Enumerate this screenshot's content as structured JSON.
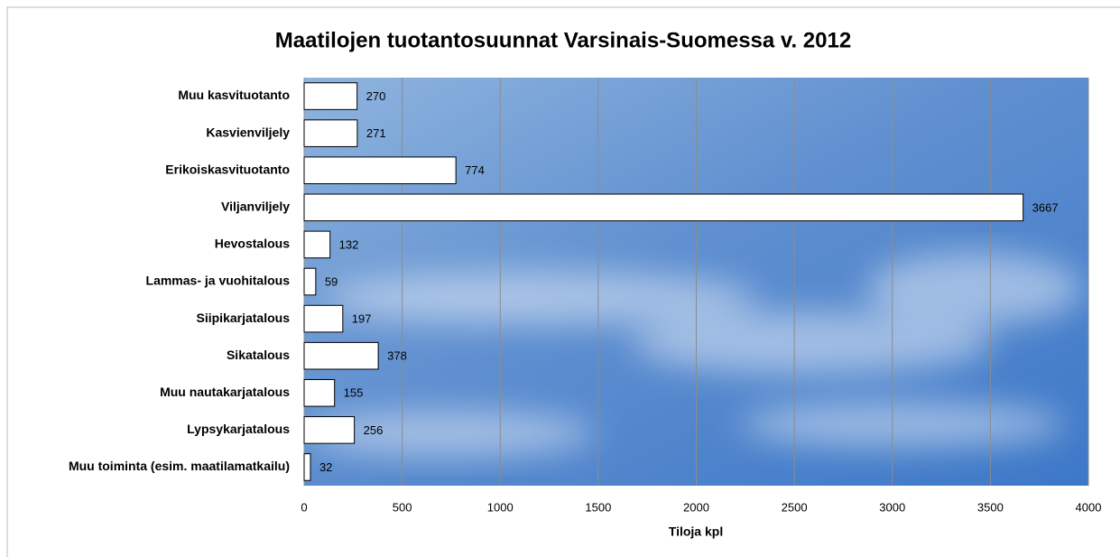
{
  "chart_data": {
    "type": "bar",
    "orientation": "horizontal",
    "title": "Maatilojen tuotantosuunnat Varsinais-Suomessa v. 2012",
    "x_label": "Tiloja kpl",
    "categories": [
      "Muu kasvituotanto",
      "Kasvienviljely",
      "Erikoiskasvituotanto",
      "Viljanviljely",
      "Hevostalous",
      "Lammas- ja vuohitalous",
      "Siipikarjatalous",
      "Sikatalous",
      "Muu nautakarjatalous",
      "Lypsykarjatalous",
      "Muu toiminta (esim. maatilamatkailu)"
    ],
    "values": [
      270,
      271,
      774,
      3667,
      132,
      59,
      197,
      378,
      155,
      256,
      32
    ],
    "color": "#ffffff",
    "xlim": [
      0,
      4000
    ],
    "xticks": [
      0,
      500,
      1000,
      1500,
      2000,
      2500,
      3000,
      3500,
      4000
    ],
    "grid": true
  }
}
